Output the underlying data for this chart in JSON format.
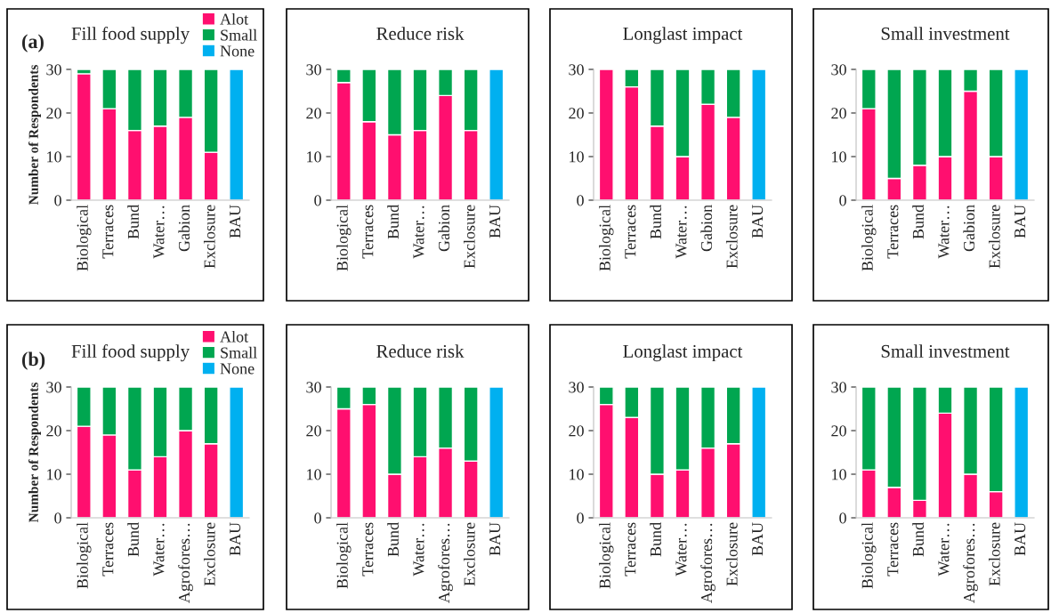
{
  "chart_data": [
    {
      "type": "bar",
      "stacked": true,
      "title": "Fill food supply",
      "ylabel": "Number of Respondents",
      "legend": "top right",
      "annotations": [
        "(a)"
      ],
      "categories": [
        "Biological",
        "Terraces",
        "Bund",
        "Water…",
        "Gabion",
        "Exclosure",
        "BAU"
      ],
      "ylim": [
        0,
        30
      ],
      "yticks": [
        0,
        10,
        20,
        30
      ],
      "series": [
        {
          "name": "Alot",
          "color": "#ff0f6f",
          "values": [
            29,
            21,
            16,
            17,
            19,
            11,
            null
          ]
        },
        {
          "name": "Small",
          "color": "#00a650",
          "values": [
            1,
            9,
            14,
            13,
            11,
            19,
            null
          ]
        },
        {
          "name": "None",
          "color": "#00b0f0",
          "values": [
            null,
            null,
            null,
            null,
            null,
            null,
            30
          ]
        }
      ]
    },
    {
      "type": "bar",
      "stacked": true,
      "title": "Reduce risk",
      "categories": [
        "Biological",
        "Terraces",
        "Bund",
        "Water…",
        "Gabion",
        "Exclosure",
        "BAU"
      ],
      "ylim": [
        0,
        30
      ],
      "yticks": [
        0,
        10,
        20,
        30
      ],
      "series": [
        {
          "color": "#ff0f6f",
          "values": [
            27,
            18,
            15,
            16,
            24,
            16,
            null
          ]
        },
        {
          "color": "#00a650",
          "values": [
            3,
            12,
            15,
            14,
            6,
            14,
            null
          ]
        },
        {
          "color": "#00b0f0",
          "values": [
            null,
            null,
            null,
            null,
            null,
            null,
            30
          ]
        }
      ]
    },
    {
      "type": "bar",
      "stacked": true,
      "title": "Longlast impact",
      "categories": [
        "Biological",
        "Terraces",
        "Bund",
        "Water…",
        "Gabion",
        "Exclosure",
        "BAU"
      ],
      "ylim": [
        0,
        30
      ],
      "yticks": [
        0,
        10,
        20,
        30
      ],
      "series": [
        {
          "color": "#ff0f6f",
          "values": [
            30,
            26,
            17,
            10,
            22,
            19,
            null
          ]
        },
        {
          "color": "#00a650",
          "values": [
            null,
            4,
            13,
            20,
            8,
            11,
            null
          ]
        },
        {
          "color": "#00b0f0",
          "values": [
            null,
            null,
            null,
            null,
            null,
            null,
            30
          ]
        }
      ]
    },
    {
      "type": "bar",
      "stacked": true,
      "title": "Small investment",
      "categories": [
        "Biological",
        "Terraces",
        "Bund",
        "Water…",
        "Gabion",
        "Exclosure",
        "BAU"
      ],
      "ylim": [
        0,
        30
      ],
      "yticks": [
        0,
        10,
        20,
        30
      ],
      "series": [
        {
          "color": "#ff0f6f",
          "values": [
            21,
            5,
            8,
            10,
            25,
            10,
            null
          ]
        },
        {
          "color": "#00a650",
          "values": [
            9,
            25,
            22,
            20,
            5,
            20,
            null
          ]
        },
        {
          "color": "#00b0f0",
          "values": [
            null,
            null,
            null,
            null,
            null,
            null,
            30
          ]
        }
      ]
    },
    {
      "type": "bar",
      "stacked": true,
      "title": "Fill food supply",
      "ylabel": "Number of Respondents",
      "legend": "top right",
      "annotations": [
        "(b)"
      ],
      "categories": [
        "Biological",
        "Terraces",
        "Bund",
        "Water…",
        "Agrofores…",
        "Exclosure",
        "BAU"
      ],
      "ylim": [
        0,
        30
      ],
      "yticks": [
        0,
        10,
        20,
        30
      ],
      "series": [
        {
          "name": "Alot",
          "color": "#ff0f6f",
          "values": [
            21,
            19,
            11,
            14,
            20,
            17,
            null
          ]
        },
        {
          "name": "Small",
          "color": "#00a650",
          "values": [
            9,
            11,
            19,
            16,
            10,
            13,
            null
          ]
        },
        {
          "name": "None",
          "color": "#00b0f0",
          "values": [
            null,
            null,
            null,
            null,
            null,
            null,
            30
          ]
        }
      ]
    },
    {
      "type": "bar",
      "stacked": true,
      "title": "Reduce risk",
      "categories": [
        "Biological",
        "Terraces",
        "Bund",
        "Water…",
        "Agrofores…",
        "Exclosure",
        "BAU"
      ],
      "ylim": [
        0,
        30
      ],
      "yticks": [
        0,
        10,
        20,
        30
      ],
      "series": [
        {
          "color": "#ff0f6f",
          "values": [
            25,
            26,
            10,
            14,
            16,
            13,
            null
          ]
        },
        {
          "color": "#00a650",
          "values": [
            5,
            4,
            20,
            16,
            14,
            17,
            null
          ]
        },
        {
          "color": "#00b0f0",
          "values": [
            null,
            null,
            null,
            null,
            null,
            null,
            30
          ]
        }
      ]
    },
    {
      "type": "bar",
      "stacked": true,
      "title": "Longlast impact",
      "categories": [
        "Biological",
        "Terraces",
        "Bund",
        "Water…",
        "Agrofores…",
        "Exclosure",
        "BAU"
      ],
      "ylim": [
        0,
        30
      ],
      "yticks": [
        0,
        10,
        20,
        30
      ],
      "series": [
        {
          "color": "#ff0f6f",
          "values": [
            26,
            23,
            10,
            11,
            16,
            17,
            null
          ]
        },
        {
          "color": "#00a650",
          "values": [
            4,
            7,
            20,
            19,
            14,
            13,
            null
          ]
        },
        {
          "color": "#00b0f0",
          "values": [
            null,
            null,
            null,
            null,
            null,
            null,
            30
          ]
        }
      ]
    },
    {
      "type": "bar",
      "stacked": true,
      "title": "Small investment",
      "categories": [
        "Biological",
        "Terraces",
        "Bund",
        "Water…",
        "Agrofores…",
        "Exclosure",
        "BAU"
      ],
      "ylim": [
        0,
        30
      ],
      "yticks": [
        0,
        10,
        20,
        30
      ],
      "series": [
        {
          "color": "#ff0f6f",
          "values": [
            11,
            7,
            4,
            24,
            10,
            6,
            null
          ]
        },
        {
          "color": "#00a650",
          "values": [
            19,
            23,
            26,
            6,
            20,
            24,
            null
          ]
        },
        {
          "color": "#00b0f0",
          "values": [
            null,
            null,
            null,
            null,
            null,
            null,
            30
          ]
        }
      ]
    }
  ]
}
